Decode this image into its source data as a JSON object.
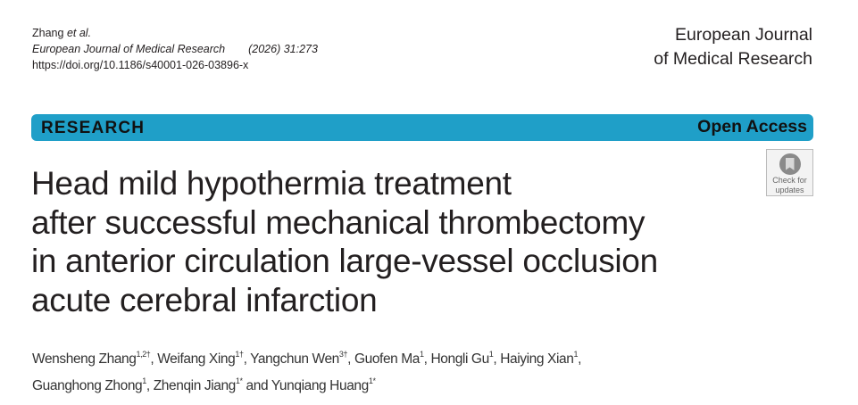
{
  "header": {
    "author_short": "Zhang",
    "et_al": "et al.",
    "journal": "European Journal of Medical Research",
    "citation": "(2026) 31:273",
    "doi": "https://doi.org/10.1186/s40001-026-03896-x",
    "journal_line1": "European Journal",
    "journal_line2": "of Medical Research"
  },
  "banner": {
    "type": "RESEARCH",
    "access": "Open Access",
    "color": "#1f9fc8"
  },
  "badge": {
    "line1": "Check for",
    "line2": "updates",
    "icon": "bookmark-circle-icon"
  },
  "title": {
    "lines": [
      "Head mild hypothermia treatment",
      "after successful mechanical thrombectomy",
      "in anterior circulation large-vessel occlusion",
      "acute cerebral infarction"
    ]
  },
  "authors": [
    {
      "name": "Wensheng Zhang",
      "sup": "1,2†",
      "sep": ", "
    },
    {
      "name": "Weifang Xing",
      "sup": "1†",
      "sep": ", "
    },
    {
      "name": "Yangchun Wen",
      "sup": "3†",
      "sep": ", "
    },
    {
      "name": "Guofen Ma",
      "sup": "1",
      "sep": ", "
    },
    {
      "name": "Hongli Gu",
      "sup": "1",
      "sep": ", "
    },
    {
      "name": "Haiying Xian",
      "sup": "1",
      "sep": ", "
    },
    {
      "name": "Guanghong Zhong",
      "sup": "1",
      "sep": ", "
    },
    {
      "name": "Zhenqin Jiang",
      "sup": "1*",
      "sep": " and "
    },
    {
      "name": "Yunqiang Huang",
      "sup": "1*",
      "sep": ""
    }
  ]
}
